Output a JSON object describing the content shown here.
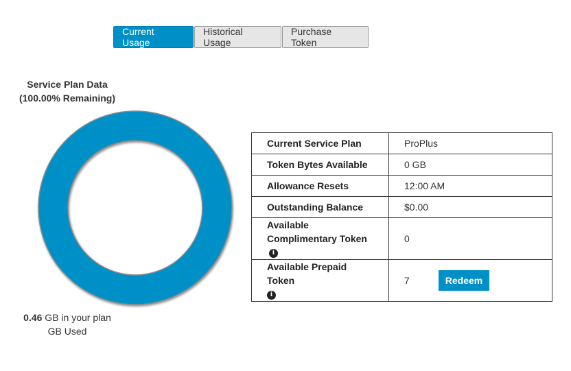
{
  "tabs": [
    {
      "label": "Current Usage",
      "active": true
    },
    {
      "label": "Historical Usage",
      "active": false
    },
    {
      "label": "Purchase Token",
      "active": false
    }
  ],
  "chart": {
    "title_line1": "Service Plan Data",
    "title_line2": "(100.00% Remaining)",
    "usage_value": "0.46",
    "usage_suffix": " GB in your plan",
    "usage_line2": "GB Used"
  },
  "chart_data": {
    "type": "pie",
    "title": "Service Plan Data (100.00% Remaining)",
    "series": [
      {
        "name": "Remaining",
        "values": [
          100.0
        ]
      }
    ],
    "remaining_percent": 100.0,
    "color_remaining": "#0090c8"
  },
  "info_table": {
    "rows": [
      {
        "label": "Current Service Plan",
        "value": "ProPlus"
      },
      {
        "label": "Token Bytes Available",
        "value": "0 GB"
      },
      {
        "label": "Allowance Resets",
        "value": "12:00 AM"
      },
      {
        "label": "Outstanding Balance",
        "value": "$0.00"
      },
      {
        "label": "Available Complimentary Token",
        "value": "0"
      },
      {
        "label": "Available Prepaid Token",
        "value": "7"
      }
    ],
    "redeem_label": "Redeem",
    "info_icon": "info-circle-icon"
  },
  "colors": {
    "accent": "#0090c8",
    "tab_inactive": "#e6e6e6"
  }
}
